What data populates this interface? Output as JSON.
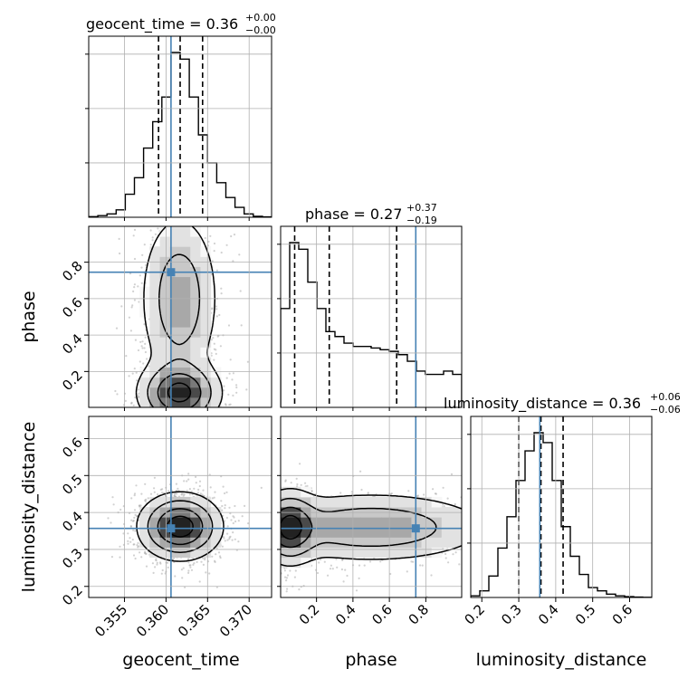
{
  "chart_data": {
    "type": "corner",
    "parameters": [
      {
        "name": "geocent_time",
        "title": "geocent_time = 0.36",
        "title_sup": "+0.00",
        "title_sub": "−0.00",
        "median": 0.3617,
        "lower": 0.3591,
        "upper": 0.3644,
        "truth": 0.3606,
        "range": [
          0.3507,
          0.3727
        ],
        "ticks": [
          0.355,
          0.36,
          0.365,
          0.37
        ],
        "tick_labels": [
          "0.355",
          "0.360",
          "0.365",
          "0.370"
        ],
        "hist": [
          0.4,
          1,
          2,
          4.5,
          14,
          24,
          42,
          58,
          73,
          100,
          96,
          73,
          50,
          33,
          21,
          12,
          6,
          2,
          0.6,
          0.2
        ]
      },
      {
        "name": "phase",
        "title": "phase = 0.27",
        "title_sup": "+0.37",
        "title_sub": "−0.19",
        "median": 0.27,
        "lower": 0.08,
        "upper": 0.64,
        "truth": 0.745,
        "range": [
          0.003,
          0.997
        ],
        "ticks": [
          0.2,
          0.4,
          0.6,
          0.8
        ],
        "tick_labels": [
          "0.2",
          "0.4",
          "0.6",
          "0.8"
        ],
        "hist": [
          60,
          100,
          96,
          76,
          60,
          46,
          43,
          39,
          37,
          37,
          36,
          35,
          34,
          32,
          28,
          22,
          20,
          20,
          22,
          20
        ]
      },
      {
        "name": "luminosity_distance",
        "title": "luminosity_distance = 0.36",
        "title_sup": "+0.06",
        "title_sub": "−0.06",
        "median": 0.36,
        "lower": 0.3,
        "upper": 0.42,
        "truth": 0.357,
        "range": [
          0.17,
          0.66
        ],
        "ticks": [
          0.2,
          0.3,
          0.4,
          0.5,
          0.6
        ],
        "tick_labels": [
          "0.2",
          "0.3",
          "0.4",
          "0.5",
          "0.6"
        ],
        "hist_1d_ticks": [
          0.2,
          0.3,
          0.4,
          0.5,
          0.6
        ],
        "hist": [
          1,
          4,
          13,
          30,
          49,
          71,
          89,
          100,
          94,
          71,
          43,
          25,
          14,
          6,
          4,
          2,
          1,
          0.5,
          0.2,
          0.1
        ]
      }
    ],
    "pair_ticks": {
      "phase": {
        "ticks": [
          0.2,
          0.4,
          0.6,
          0.8
        ],
        "tick_labels": [
          "0.2",
          "0.4",
          "0.6",
          "0.8"
        ]
      },
      "luminosity_distance": {
        "ticks": [
          0.2,
          0.3,
          0.4,
          0.5,
          0.6
        ],
        "tick_labels": [
          "0.2",
          "0.3",
          "0.4",
          "0.5",
          "0.6"
        ]
      }
    },
    "grid": true,
    "truth_color": "#4682b4",
    "line_color": "#000000",
    "quantile_style": "dashed"
  }
}
